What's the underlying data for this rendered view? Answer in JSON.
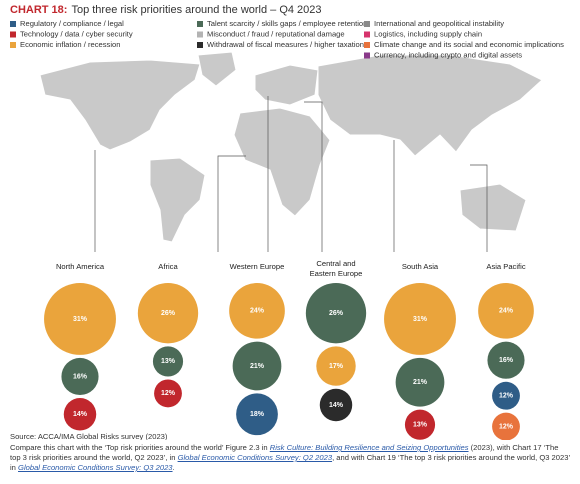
{
  "chart_data": {
    "type": "bubble",
    "title_label": "CHART 18:",
    "title": "Top three risk priorities around the world – Q4 2023",
    "legend": [
      {
        "name": "Regulatory / compliance / legal",
        "color": "#2f5d87"
      },
      {
        "name": "Technology / data / cyber security",
        "color": "#c1272d"
      },
      {
        "name": "Economic inflation / recession",
        "color": "#eaa43c"
      },
      {
        "name": "Talent scarcity / skills gaps / employee retention",
        "color": "#4b6a57"
      },
      {
        "name": "Misconduct / fraud / reputational damage",
        "color": "#b3b3b3"
      },
      {
        "name": "Withdrawal of fiscal measures / higher taxation",
        "color": "#2b2b2b"
      },
      {
        "name": "International and geopolitical instability",
        "color": "#8a8a8a"
      },
      {
        "name": "Logistics, including supply chain",
        "color": "#d6336c"
      },
      {
        "name": "Climate change and its social and economic implications",
        "color": "#e8733c"
      },
      {
        "name": "Currency, including crypto and digital assets",
        "color": "#8a3a8a"
      }
    ],
    "regions": [
      {
        "name": "North America",
        "bubbles": [
          {
            "risk": 2,
            "value": 31,
            "value_label": "31%"
          },
          {
            "risk": 3,
            "value": 16,
            "value_label": "16%"
          },
          {
            "risk": 1,
            "value": 14,
            "value_label": "14%"
          }
        ]
      },
      {
        "name": "Africa",
        "bubbles": [
          {
            "risk": 2,
            "value": 26,
            "value_label": "26%"
          },
          {
            "risk": 3,
            "value": 13,
            "value_label": "13%"
          },
          {
            "risk": 1,
            "value": 12,
            "value_label": "12%"
          }
        ]
      },
      {
        "name": "Western Europe",
        "bubbles": [
          {
            "risk": 2,
            "value": 24,
            "value_label": "24%"
          },
          {
            "risk": 3,
            "value": 21,
            "value_label": "21%"
          },
          {
            "risk": 0,
            "value": 18,
            "value_label": "18%"
          }
        ]
      },
      {
        "name": [
          "Central and",
          "Eastern Europe"
        ],
        "bubbles": [
          {
            "risk": 3,
            "value": 26,
            "value_label": "26%"
          },
          {
            "risk": 2,
            "value": 17,
            "value_label": "17%"
          },
          {
            "risk": 5,
            "value": 14,
            "value_label": "14%"
          }
        ]
      },
      {
        "name": "South Asia",
        "bubbles": [
          {
            "risk": 2,
            "value": 31,
            "value_label": "31%"
          },
          {
            "risk": 3,
            "value": 21,
            "value_label": "21%"
          },
          {
            "risk": 1,
            "value": 13,
            "value_label": "13%"
          }
        ]
      },
      {
        "name": "Asia Pacific",
        "bubbles": [
          {
            "risk": 2,
            "value": 24,
            "value_label": "24%"
          },
          {
            "risk": 3,
            "value": 16,
            "value_label": "16%"
          },
          {
            "risk": 0,
            "value": 12,
            "value_label": "12%"
          },
          {
            "risk": 8,
            "value": 12,
            "value_label": "12%"
          }
        ]
      }
    ],
    "source": "Source: ACCA/IMA Global Risks survey (2023)",
    "note": [
      {
        "text": "Compare this chart with the ‘Top risk priorities around the world’ Figure 2.3 in "
      },
      {
        "text": "Risk Culture: Building Resilience and Seizing Opportunities",
        "link": true
      },
      {
        "text": " (2023), with Chart 17 ‘The top 3 risk priorities around the world, Q2 2023’, in "
      },
      {
        "text": "Global Economic Conditions Survey: Q2 2023",
        "link": true
      },
      {
        "text": ", and with Chart 19 ‘The top 3 risk priorities around the world, Q3 2023’ in "
      },
      {
        "text": "Global Economic Conditions Survey: Q3 2023",
        "link": true
      },
      {
        "text": "."
      }
    ]
  }
}
